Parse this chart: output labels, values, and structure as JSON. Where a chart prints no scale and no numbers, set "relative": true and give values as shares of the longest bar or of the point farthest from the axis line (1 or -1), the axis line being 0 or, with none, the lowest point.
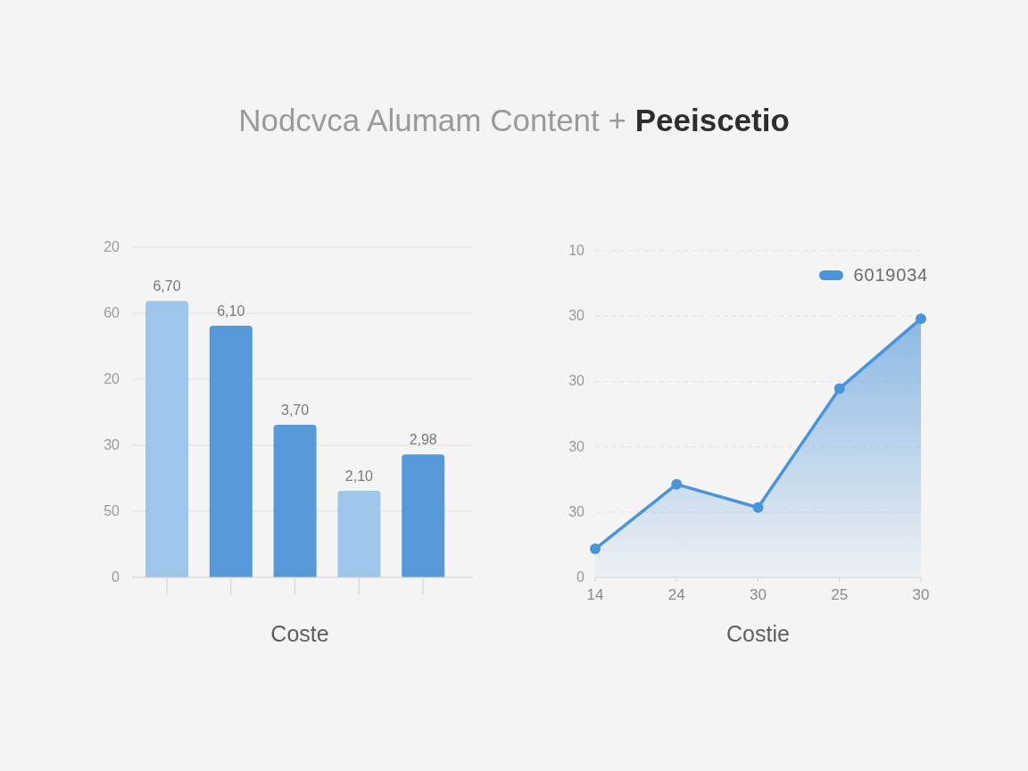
{
  "chart_data": [
    {
      "type": "bar",
      "title": "Nodcvca Alumam Content + Peeiscetio",
      "xlabel": "Coste",
      "categories": [
        null,
        null,
        null,
        null,
        null
      ],
      "values": [
        6.7,
        6.1,
        3.7,
        2.1,
        2.98
      ],
      "colors": [
        "#9dc6ea",
        "#5599d8",
        "#5599d8",
        "#9dc6ea",
        "#5599d8"
      ],
      "value_labels": [
        "6,70",
        "6,10",
        "3,70",
        "2,10",
        "2,98"
      ],
      "annotations": [
        "20",
        "60",
        "20",
        "30",
        "50",
        "0"
      ],
      "grid": "y"
    },
    {
      "type": "area",
      "relative": true,
      "xlabel": "Costie",
      "categories": [
        "14",
        "24",
        "30",
        "25",
        "30"
      ],
      "series": [
        {
          "name": "6019034",
          "color": "#4a94db",
          "values": [
            0.11,
            0.36,
            0.27,
            0.73,
            1
          ]
        }
      ],
      "annotations": [
        "10",
        "30",
        "30",
        "30",
        "30",
        "0"
      ],
      "grid": "y",
      "legend": "top right",
      "marker": "circle"
    }
  ]
}
